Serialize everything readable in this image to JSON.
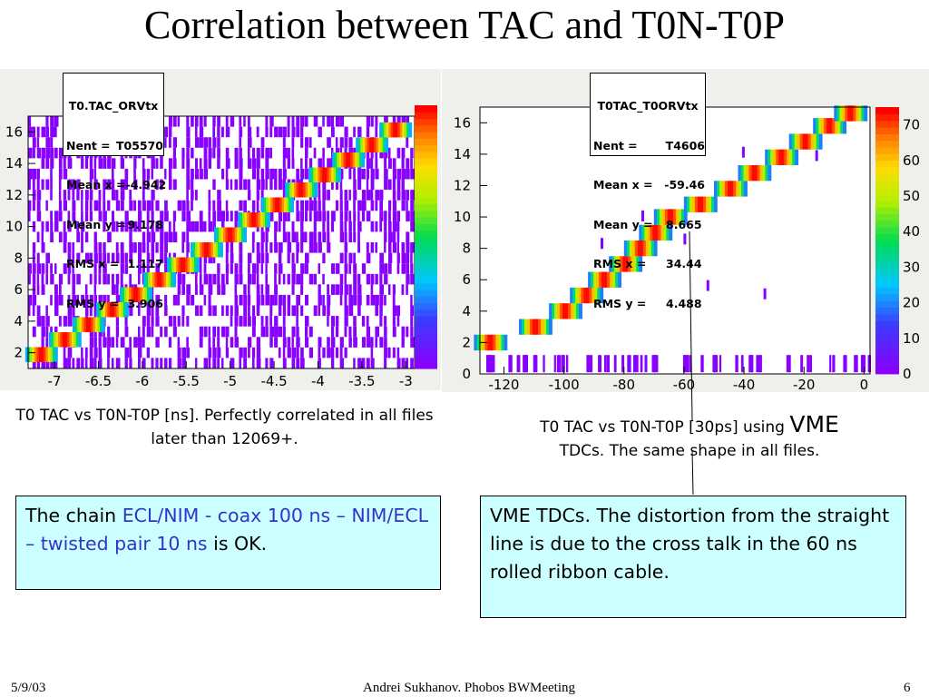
{
  "slide": {
    "title": "Correlation between TAC and T0N-T0P",
    "footer": {
      "date": "5/9/03",
      "author": "Andrei Sukhanov. Phobos BWMeeting",
      "page": "6"
    }
  },
  "left_plot": {
    "stats": {
      "title": "T0.TAC_ORVtx",
      "rows": [
        {
          "k": "Nent =",
          "v": "T05570"
        },
        {
          "k": "Mean x =",
          "v": "-4.942"
        },
        {
          "k": "Mean y =",
          "v": "9.178"
        },
        {
          "k": "RMS x =",
          "v": "1.117"
        },
        {
          "k": "RMS y =",
          "v": "3.906"
        }
      ]
    },
    "caption": "T0 TAC vs T0N-T0P [ns]. Perfectly correlated in all files later than 12069+."
  },
  "right_plot": {
    "stats": {
      "title": "T0TAC_T0ORVtx",
      "rows": [
        {
          "k": "Nent =",
          "v": "T4606"
        },
        {
          "k": "Mean x =",
          "v": "-59.46"
        },
        {
          "k": "Mean y =",
          "v": "8.665"
        },
        {
          "k": "RMS x =",
          "v": "34.44"
        },
        {
          "k": "RMS y =",
          "v": "4.488"
        }
      ]
    },
    "caption_a": "T0 TAC vs T0N-T0P [30ps] using ",
    "caption_big": "VME",
    "caption_b": "TDCs. The same shape in all files."
  },
  "left_box": {
    "pre": "The chain ",
    "hl": "ECL/NIM - coax 100 ns – NIM/ECL – twisted pair 10 ns",
    "post": " is OK."
  },
  "right_box": {
    "text": "VME TDCs. The distortion from the straight line is due to the cross talk in the 60 ns rolled ribbon cable."
  },
  "colors": {
    "background_point": "#8800ff",
    "box_fill": "#ccffff",
    "highlight": "#3333cc",
    "panel": "#efefec"
  },
  "chart_data": [
    {
      "type": "heatmap",
      "title": "T0.TAC_ORVtx",
      "xlim": [
        -7.3,
        -2.9
      ],
      "ylim": [
        1,
        17
      ],
      "x_ticks": [
        "-7",
        "-6.5",
        "-6",
        "-5.5",
        "-5",
        "-4.5",
        "-4",
        "-3.5",
        "-3"
      ],
      "y_ticks": [
        "2",
        "4",
        "6",
        "8",
        "10",
        "12",
        "14",
        "16"
      ],
      "band": {
        "x_start": -7.3,
        "x_end": -3.0,
        "y_start": 1.4,
        "y_end": 16.6,
        "steps": 16
      },
      "background": "uniform sparse counts"
    },
    {
      "type": "heatmap",
      "title": "T0TAC_T0ORVtx",
      "xlim": [
        -128,
        2
      ],
      "ylim": [
        0,
        17
      ],
      "x_ticks": [
        "-120",
        "-100",
        "-80",
        "-60",
        "-40",
        "-20",
        "0"
      ],
      "y_ticks": [
        "0",
        "2",
        "4",
        "6",
        "8",
        "10",
        "12",
        "14",
        "16"
      ],
      "z_ticks": [
        "0",
        "10",
        "20",
        "30",
        "40",
        "50",
        "60",
        "70"
      ],
      "band_points": [
        [
          -125,
          2
        ],
        [
          -110,
          3
        ],
        [
          -100,
          4
        ],
        [
          -93,
          5
        ],
        [
          -87,
          6
        ],
        [
          -80,
          7
        ],
        [
          -75,
          8
        ],
        [
          -70,
          9
        ],
        [
          -65,
          10
        ],
        [
          -55,
          10.8
        ],
        [
          -45,
          11.8
        ],
        [
          -37,
          12.8
        ],
        [
          -28,
          13.8
        ],
        [
          -20,
          14.8
        ],
        [
          -12,
          15.8
        ],
        [
          -5,
          16.6
        ]
      ],
      "background": "row near 0"
    }
  ]
}
